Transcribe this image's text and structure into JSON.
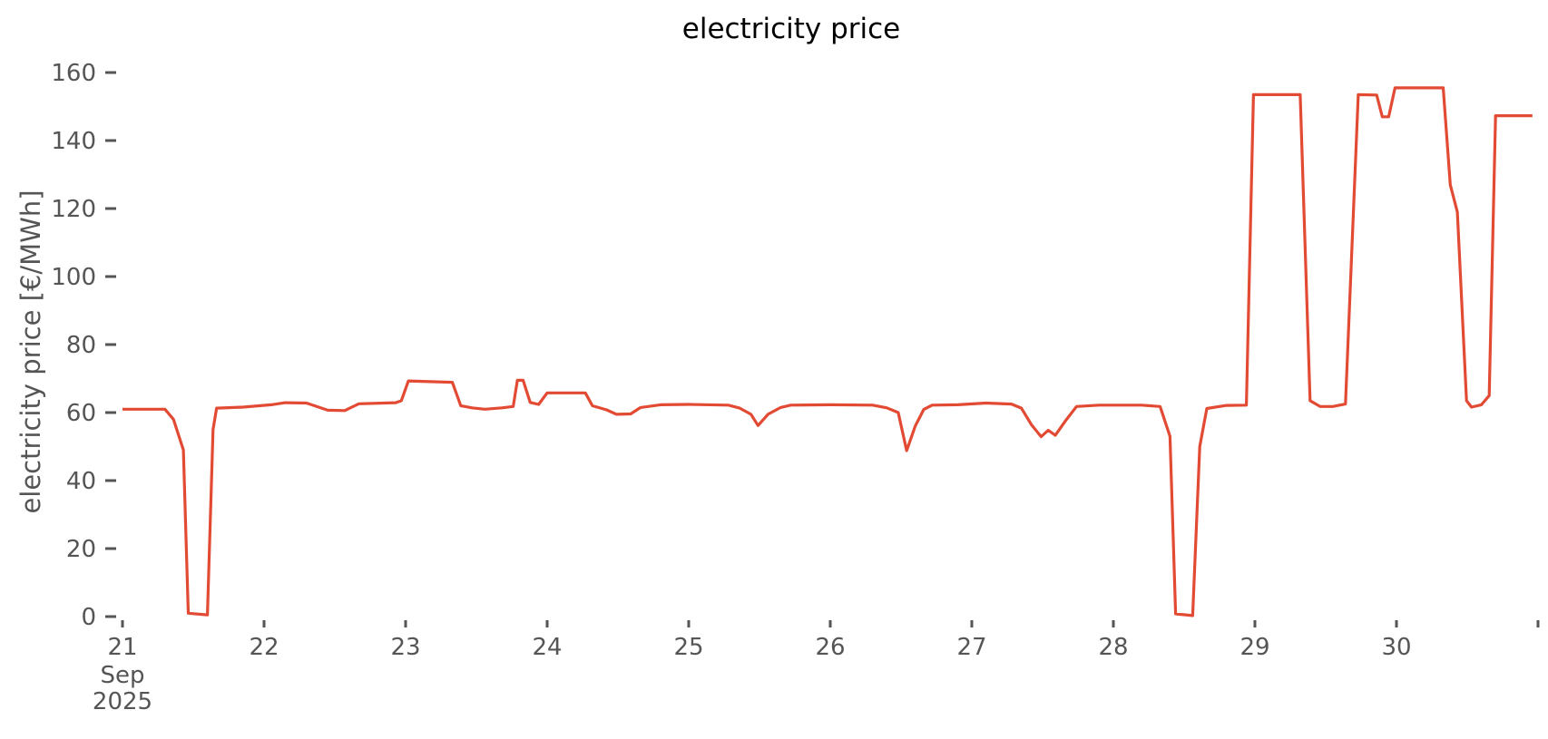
{
  "styles": {
    "background": "#ffffff",
    "line_color": "#E24A33",
    "tick_text_color": "#555555",
    "title_color": "#000000",
    "line_width": 3.2
  },
  "chart_data": {
    "type": "line",
    "title": "electricity price",
    "xlabel": "",
    "ylabel": "electricity price [€/MWh]",
    "legend": null,
    "grid": false,
    "x_unit": "days since 2025-09-21 00:00",
    "x_tick_labels": [
      {
        "t": 0,
        "label": "21",
        "sub": [
          "Sep",
          "2025"
        ]
      },
      {
        "t": 1,
        "label": "22"
      },
      {
        "t": 2,
        "label": "23"
      },
      {
        "t": 3,
        "label": "24"
      },
      {
        "t": 4,
        "label": "25"
      },
      {
        "t": 5,
        "label": "26"
      },
      {
        "t": 6,
        "label": "27"
      },
      {
        "t": 7,
        "label": "28"
      },
      {
        "t": 8,
        "label": "29"
      },
      {
        "t": 9,
        "label": "30"
      },
      {
        "t": 10,
        "label": ""
      }
    ],
    "y_ticks": [
      0,
      20,
      40,
      60,
      80,
      100,
      120,
      140,
      160
    ],
    "ylim": [
      0,
      160
    ],
    "xlim_days": [
      -0.09,
      10.03
    ],
    "series": [
      {
        "name": "electricity price",
        "color": "#E24A33",
        "points": [
          [
            0.0,
            61.0
          ],
          [
            0.3,
            61.0
          ],
          [
            0.36,
            58.0
          ],
          [
            0.43,
            49.0
          ],
          [
            0.465,
            1.0
          ],
          [
            0.6,
            0.5
          ],
          [
            0.64,
            55.0
          ],
          [
            0.665,
            61.3
          ],
          [
            0.85,
            61.6
          ],
          [
            1.05,
            62.3
          ],
          [
            1.15,
            62.9
          ],
          [
            1.3,
            62.8
          ],
          [
            1.45,
            60.7
          ],
          [
            1.57,
            60.6
          ],
          [
            1.67,
            62.6
          ],
          [
            1.93,
            62.9
          ],
          [
            1.97,
            63.5
          ],
          [
            2.02,
            69.3
          ],
          [
            2.33,
            68.9
          ],
          [
            2.39,
            62.0
          ],
          [
            2.47,
            61.4
          ],
          [
            2.56,
            61.0
          ],
          [
            2.68,
            61.4
          ],
          [
            2.76,
            61.8
          ],
          [
            2.79,
            69.5
          ],
          [
            2.83,
            69.5
          ],
          [
            2.88,
            63.0
          ],
          [
            2.94,
            62.4
          ],
          [
            3.0,
            65.8
          ],
          [
            3.27,
            65.8
          ],
          [
            3.32,
            62.0
          ],
          [
            3.42,
            60.8
          ],
          [
            3.49,
            59.5
          ],
          [
            3.59,
            59.6
          ],
          [
            3.66,
            61.5
          ],
          [
            3.8,
            62.3
          ],
          [
            4.0,
            62.4
          ],
          [
            4.28,
            62.2
          ],
          [
            4.36,
            61.3
          ],
          [
            4.44,
            59.5
          ],
          [
            4.49,
            56.2
          ],
          [
            4.56,
            59.5
          ],
          [
            4.65,
            61.5
          ],
          [
            4.72,
            62.2
          ],
          [
            5.0,
            62.3
          ],
          [
            5.3,
            62.2
          ],
          [
            5.4,
            61.4
          ],
          [
            5.48,
            60.0
          ],
          [
            5.54,
            48.8
          ],
          [
            5.6,
            56.0
          ],
          [
            5.66,
            60.9
          ],
          [
            5.72,
            62.2
          ],
          [
            5.9,
            62.3
          ],
          [
            6.1,
            62.8
          ],
          [
            6.28,
            62.5
          ],
          [
            6.35,
            61.3
          ],
          [
            6.42,
            56.5
          ],
          [
            6.49,
            52.9
          ],
          [
            6.54,
            54.8
          ],
          [
            6.59,
            53.3
          ],
          [
            6.66,
            57.5
          ],
          [
            6.74,
            61.8
          ],
          [
            6.9,
            62.2
          ],
          [
            7.2,
            62.2
          ],
          [
            7.33,
            61.8
          ],
          [
            7.4,
            53.0
          ],
          [
            7.44,
            0.8
          ],
          [
            7.56,
            0.3
          ],
          [
            7.61,
            50.0
          ],
          [
            7.66,
            61.2
          ],
          [
            7.8,
            62.1
          ],
          [
            7.94,
            62.2
          ],
          [
            7.99,
            153.5
          ],
          [
            8.32,
            153.5
          ],
          [
            8.39,
            63.5
          ],
          [
            8.46,
            61.8
          ],
          [
            8.55,
            61.8
          ],
          [
            8.64,
            62.5
          ],
          [
            8.73,
            153.5
          ],
          [
            8.86,
            153.4
          ],
          [
            8.9,
            147.0
          ],
          [
            8.945,
            147.0
          ],
          [
            8.99,
            155.5
          ],
          [
            9.33,
            155.5
          ],
          [
            9.38,
            127.0
          ],
          [
            9.43,
            119.0
          ],
          [
            9.495,
            63.5
          ],
          [
            9.53,
            61.6
          ],
          [
            9.6,
            62.3
          ],
          [
            9.655,
            65.0
          ],
          [
            9.7,
            147.3
          ],
          [
            9.96,
            147.3
          ]
        ]
      }
    ]
  }
}
